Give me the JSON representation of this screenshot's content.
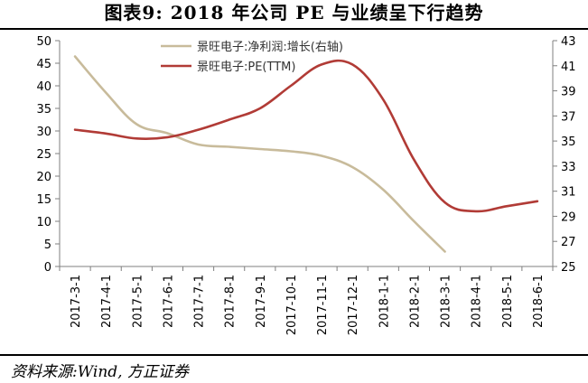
{
  "title": "图表9:  2018 年公司 PE 与业绩呈下行趋势",
  "source": "资料来源:Wind, 方正证券",
  "chart_data": {
    "type": "line",
    "categories": [
      "2017-3-1",
      "2017-4-1",
      "2017-5-1",
      "2017-6-1",
      "2017-7-1",
      "2017-8-1",
      "2017-9-1",
      "2017-10-1",
      "2017-11-1",
      "2017-12-1",
      "2018-1-1",
      "2018-2-1",
      "2018-3-1",
      "2018-4-1",
      "2018-5-1",
      "2018-6-1"
    ],
    "left_axis": {
      "min": 0,
      "max": 50,
      "ticks": [
        0,
        5,
        10,
        15,
        20,
        25,
        30,
        35,
        40,
        45,
        50
      ]
    },
    "right_axis": {
      "min": 25,
      "max": 43,
      "ticks": [
        25,
        27,
        29,
        31,
        33,
        35,
        37,
        39,
        41,
        43
      ]
    },
    "grid": false,
    "legend_position": "top-center",
    "series": [
      {
        "name": "景旺电子:净利润:增长(右轴)",
        "axis": "left",
        "color": "#c8bb9b",
        "x": [
          0,
          1,
          2,
          3,
          4,
          5,
          6,
          7,
          8,
          9,
          10,
          11,
          12
        ],
        "values": [
          46.5,
          38.5,
          31.5,
          29.5,
          27,
          26.5,
          26,
          25.5,
          24.5,
          22,
          17,
          10,
          3.3
        ]
      },
      {
        "name": "景旺电子:PE(TTM)",
        "axis": "right",
        "color": "#b13b36",
        "x": [
          0,
          1,
          2,
          3,
          4,
          5,
          6,
          7,
          8,
          9,
          10,
          11,
          12,
          13,
          14,
          15
        ],
        "values": [
          35.9,
          35.6,
          35.2,
          35.3,
          35.9,
          36.7,
          37.6,
          39.4,
          41.1,
          41.1,
          38.3,
          33.5,
          30.1,
          29.4,
          29.8,
          30.2
        ]
      }
    ]
  }
}
